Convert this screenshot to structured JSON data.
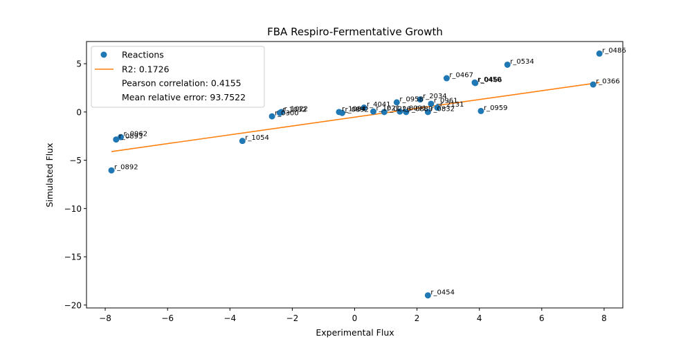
{
  "chart_data": {
    "type": "scatter",
    "title": "FBA Respiro-Fermentative Growth",
    "xlabel": "Experimental Flux",
    "ylabel": "Simulated Flux",
    "xlim": [
      -8.6,
      8.6
    ],
    "ylim": [
      -20.3,
      7.3
    ],
    "xticks": [
      -8,
      -6,
      -4,
      -2,
      0,
      2,
      4,
      6,
      8
    ],
    "yticks": [
      -20,
      -15,
      -10,
      -5,
      0,
      5
    ],
    "xtick_labels": [
      "−8",
      "−6",
      "−4",
      "−2",
      "0",
      "2",
      "4",
      "6",
      "8"
    ],
    "ytick_labels": [
      "−20",
      "−15",
      "−10",
      "−5",
      "0",
      "5"
    ],
    "grid": false,
    "legend_position": "top-left",
    "legend": {
      "series_label": "Reactions",
      "fit_label": "R2: 0.1726",
      "pearson_label": "Pearson correlation: 0.4155",
      "mre_label": "Mean relative error: 93.7522"
    },
    "points": [
      {
        "label": "r_0486",
        "x": 7.85,
        "y": 6.05
      },
      {
        "label": "r_0366",
        "x": 7.65,
        "y": 2.85
      },
      {
        "label": "r_0534",
        "x": 4.9,
        "y": 4.9
      },
      {
        "label": "r_0467",
        "x": 2.95,
        "y": 3.5
      },
      {
        "label": "r_0450",
        "x": 3.85,
        "y": 3.05
      },
      {
        "label": "r_0466",
        "x": 3.87,
        "y": 3.0
      },
      {
        "label": "r_0959",
        "x": 4.05,
        "y": 0.1
      },
      {
        "label": "r_2034",
        "x": 2.1,
        "y": 1.3
      },
      {
        "label": "r_0961",
        "x": 2.45,
        "y": 0.85
      },
      {
        "label": "r_2131",
        "x": 2.65,
        "y": 0.45
      },
      {
        "label": "r_0832",
        "x": 2.35,
        "y": 0.0
      },
      {
        "label": "r_0958",
        "x": 1.35,
        "y": 1.0
      },
      {
        "label": "r_4041",
        "x": 0.3,
        "y": 0.45
      },
      {
        "label": "r_1084",
        "x": -0.5,
        "y": 0.0
      },
      {
        "label": "r_0892b",
        "display": "r_0892",
        "x": -0.4,
        "y": -0.1
      },
      {
        "label": "r_1021",
        "x": 0.6,
        "y": 0.05
      },
      {
        "label": "r_0226",
        "x": 0.95,
        "y": 0.0
      },
      {
        "label": "r_0091",
        "x": 1.45,
        "y": 0.05
      },
      {
        "label": "r_0889",
        "x": 1.65,
        "y": 0.0
      },
      {
        "label": "r_1022",
        "x": -2.35,
        "y": 0.0
      },
      {
        "label": "r_1032",
        "x": -2.4,
        "y": -0.1
      },
      {
        "label": "r_0300",
        "x": -2.65,
        "y": -0.45
      },
      {
        "label": "r_1054",
        "x": -3.6,
        "y": -3.0
      },
      {
        "label": "r_0962",
        "x": -7.5,
        "y": -2.6
      },
      {
        "label": "r_0893",
        "x": -7.65,
        "y": -2.85
      },
      {
        "label": "r_0892",
        "x": -7.8,
        "y": -6.05
      },
      {
        "label": "r_0454",
        "x": 2.35,
        "y": -19.0
      }
    ],
    "fit_line": {
      "x": [
        -7.8,
        7.85
      ],
      "y": [
        -4.1,
        3.05
      ]
    },
    "colors": {
      "points": "#1f77b4",
      "fit_line": "#ff7f0e",
      "axes": "#000000"
    }
  }
}
